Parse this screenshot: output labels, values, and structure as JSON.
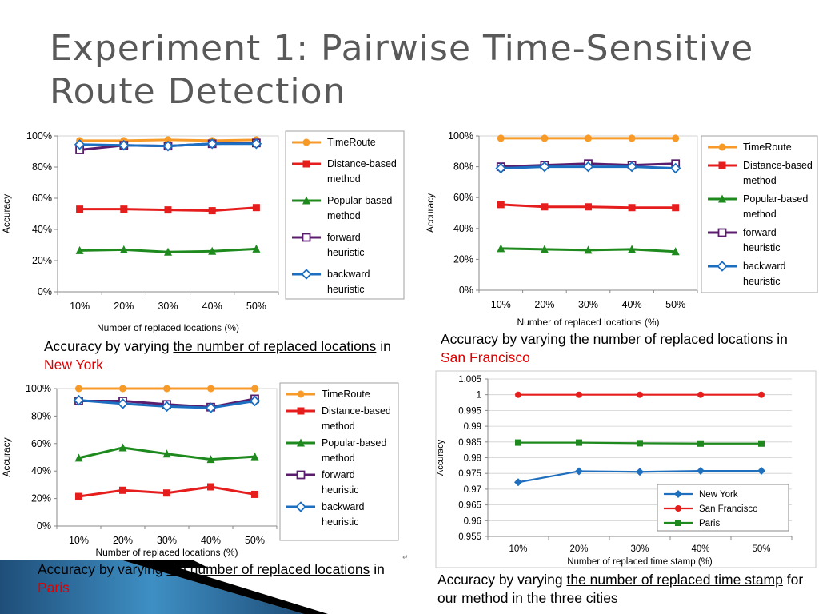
{
  "title": "Experiment 1: Pairwise Time-Sensitive Route Detection",
  "chart_data": [
    {
      "type": "line",
      "xlabel": "Number of replaced locations (%)",
      "ylabel": "Accuracy",
      "categories": [
        "10%",
        "20%",
        "30%",
        "40%",
        "50%"
      ],
      "ylim": [
        0,
        100
      ],
      "yticks": [
        "0%",
        "20%",
        "40%",
        "60%",
        "80%",
        "100%"
      ],
      "grid": false,
      "legend_position": "right",
      "series": [
        {
          "name": "TimeRoute",
          "values": [
            97,
            97,
            97.5,
            97,
            97.5
          ],
          "color": "#f79a27",
          "marker": "circle"
        },
        {
          "name": "Distance-based method",
          "values": [
            53,
            53,
            52.5,
            52,
            54
          ],
          "color": "#e51d1d",
          "marker": "square"
        },
        {
          "name": "Popular-based method",
          "values": [
            26.5,
            27,
            25.5,
            26,
            27.5
          ],
          "color": "#1e8a1e",
          "marker": "triangle"
        },
        {
          "name": "forward heuristic",
          "values": [
            91,
            94,
            93.5,
            95,
            95.5
          ],
          "color": "#5a1d6e",
          "marker": "open-square"
        },
        {
          "name": "backward heuristic",
          "values": [
            94.5,
            94,
            93.5,
            95,
            95
          ],
          "color": "#1b6ec0",
          "marker": "open-diamond"
        }
      ]
    },
    {
      "type": "line",
      "xlabel": "Number of replaced locations (%)",
      "ylabel": "Accuracy",
      "categories": [
        "10%",
        "20%",
        "30%",
        "40%",
        "50%"
      ],
      "ylim": [
        0,
        100
      ],
      "yticks": [
        "0%",
        "20%",
        "40%",
        "60%",
        "80%",
        "100%"
      ],
      "grid": false,
      "legend_position": "right",
      "series": [
        {
          "name": "TimeRoute",
          "values": [
            98.5,
            98.5,
            98.5,
            98.5,
            98.5
          ],
          "color": "#f79a27",
          "marker": "circle"
        },
        {
          "name": "Distance-based method",
          "values": [
            55.5,
            54,
            54,
            53.5,
            53.5
          ],
          "color": "#e51d1d",
          "marker": "square"
        },
        {
          "name": "Popular-based method",
          "values": [
            27,
            26.5,
            26,
            26.5,
            25
          ],
          "color": "#1e8a1e",
          "marker": "triangle"
        },
        {
          "name": "forward heuristic",
          "values": [
            80,
            81,
            82,
            81,
            82
          ],
          "color": "#5a1d6e",
          "marker": "open-square"
        },
        {
          "name": "backward heuristic",
          "values": [
            79,
            80,
            80,
            80,
            79
          ],
          "color": "#1b6ec0",
          "marker": "open-diamond"
        }
      ]
    },
    {
      "type": "line",
      "xlabel": "Number of replaced locations (%)",
      "ylabel": "Accuracy",
      "categories": [
        "10%",
        "20%",
        "30%",
        "40%",
        "50%"
      ],
      "ylim": [
        0,
        100
      ],
      "yticks": [
        "0%",
        "20%",
        "40%",
        "60%",
        "80%",
        "100%"
      ],
      "grid": false,
      "legend_position": "right",
      "series": [
        {
          "name": "TimeRoute",
          "values": [
            100,
            100,
            100,
            100,
            100
          ],
          "color": "#f79a27",
          "marker": "circle"
        },
        {
          "name": "Distance-based method",
          "values": [
            21.5,
            26,
            24,
            28.5,
            23
          ],
          "color": "#e51d1d",
          "marker": "square"
        },
        {
          "name": "Popular-based method",
          "values": [
            49.5,
            57,
            52.5,
            48.5,
            50.5
          ],
          "color": "#1e8a1e",
          "marker": "triangle"
        },
        {
          "name": "forward heuristic",
          "values": [
            91,
            91,
            88.5,
            86.5,
            92.5
          ],
          "color": "#5a1d6e",
          "marker": "open-square"
        },
        {
          "name": "backward heuristic",
          "values": [
            91.5,
            89,
            87,
            86,
            91
          ],
          "color": "#1b6ec0",
          "marker": "open-diamond"
        }
      ]
    },
    {
      "type": "line",
      "xlabel": "Number of replaced time stamp (%)",
      "ylabel": "Accuracy",
      "categories": [
        "10%",
        "20%",
        "30%",
        "40%",
        "50%"
      ],
      "ylim": [
        0.955,
        1.005
      ],
      "yticks": [
        "0.955",
        "0.96",
        "0.965",
        "0.97",
        "0.975",
        "0.98",
        "0.985",
        "0.99",
        "0.995",
        "1",
        "1.005"
      ],
      "grid": true,
      "legend_position": "bottom-right",
      "series": [
        {
          "name": "New York",
          "values": [
            0.9722,
            0.9757,
            0.9755,
            0.9758,
            0.9758
          ],
          "color": "#1f6fbf",
          "marker": "diamond"
        },
        {
          "name": "San Francisco",
          "values": [
            1.0,
            1.0,
            1.0,
            1.0,
            1.0
          ],
          "color": "#e51d1d",
          "marker": "circle"
        },
        {
          "name": "Paris",
          "values": [
            0.9848,
            0.9848,
            0.9846,
            0.9845,
            0.9845
          ],
          "color": "#1e8a1e",
          "marker": "square"
        }
      ]
    }
  ],
  "captions": {
    "ny": {
      "pre": "Accuracy by varying ",
      "u": "the number of replaced locations",
      "mid": " in ",
      "city": "New York"
    },
    "sf": {
      "pre": "Accuracy by ",
      "u": "varying the number of replaced locations",
      "mid": " in ",
      "city": "San Francisco"
    },
    "paris": {
      "pre": "Accuracy by varying ",
      "u": "the number of replaced locations",
      "mid": " in ",
      "city": "Paris"
    },
    "three": {
      "pre": "Accuracy by varying ",
      "u": "the number of replaced time stamp",
      "post": " for our method in the three cities"
    }
  }
}
